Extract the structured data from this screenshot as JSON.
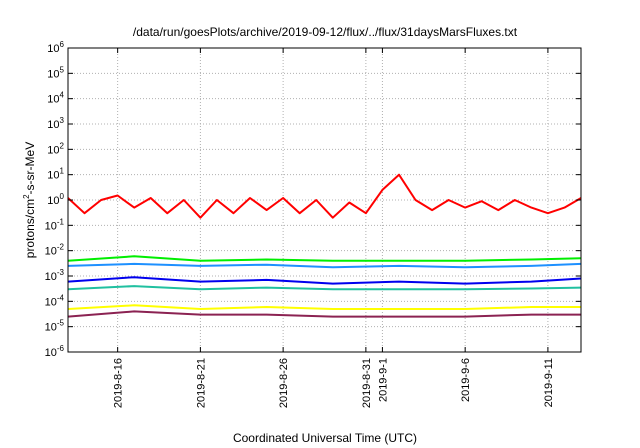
{
  "chart_data": {
    "type": "line",
    "title": "/data/run/goesPlots/archive/2019-09-12/flux/../flux/31daysMarsFluxes.txt",
    "xlabel": "Coordinated Universal Time (UTC)",
    "ylabel": "protons/cm2-s-sr-MeV",
    "ylabel_base": "protons/cm",
    "ylabel_sup": "2",
    "ylabel_rest": "-s-sr-MeV",
    "yscale": "log",
    "ylim": [
      1e-06,
      1000000.0
    ],
    "xlim": [
      "2019-08-13",
      "2019-09-13"
    ],
    "grid": true,
    "legend": "none",
    "y_ticks": [
      {
        "value": 1e-06,
        "exp": "-6"
      },
      {
        "value": 1e-05,
        "exp": "-5"
      },
      {
        "value": 0.0001,
        "exp": "-4"
      },
      {
        "value": 0.001,
        "exp": "-3"
      },
      {
        "value": 0.01,
        "exp": "-2"
      },
      {
        "value": 0.1,
        "exp": "-1"
      },
      {
        "value": 1.0,
        "exp": "0"
      },
      {
        "value": 10.0,
        "exp": "1"
      },
      {
        "value": 100.0,
        "exp": "2"
      },
      {
        "value": 1000.0,
        "exp": "3"
      },
      {
        "value": 10000.0,
        "exp": "4"
      },
      {
        "value": 100000.0,
        "exp": "5"
      },
      {
        "value": 1000000.0,
        "exp": "6"
      }
    ],
    "x_ticks": [
      {
        "date": "2019-08-16",
        "label": "2019-8-16"
      },
      {
        "date": "2019-08-21",
        "label": "2019-8-21"
      },
      {
        "date": "2019-08-26",
        "label": "2019-8-26"
      },
      {
        "date": "2019-08-31",
        "label": "2019-8-31"
      },
      {
        "date": "2019-09-01",
        "label": "2019-9-1"
      },
      {
        "date": "2019-09-06",
        "label": "2019-9-6"
      },
      {
        "date": "2019-09-11",
        "label": "2019-9-11"
      }
    ],
    "series": [
      {
        "color": "#ff0000",
        "x": [
          "2019-08-13",
          "2019-08-14",
          "2019-08-15",
          "2019-08-16",
          "2019-08-17",
          "2019-08-18",
          "2019-08-19",
          "2019-08-20",
          "2019-08-21",
          "2019-08-22",
          "2019-08-23",
          "2019-08-24",
          "2019-08-25",
          "2019-08-26",
          "2019-08-27",
          "2019-08-28",
          "2019-08-29",
          "2019-08-30",
          "2019-08-31",
          "2019-09-01",
          "2019-09-02",
          "2019-09-03",
          "2019-09-04",
          "2019-09-05",
          "2019-09-06",
          "2019-09-07",
          "2019-09-08",
          "2019-09-09",
          "2019-09-10",
          "2019-09-11",
          "2019-09-12",
          "2019-09-13"
        ],
        "y": [
          1.2,
          0.3,
          1.0,
          1.5,
          0.5,
          1.2,
          0.3,
          1.0,
          0.2,
          1.0,
          0.3,
          1.2,
          0.4,
          1.2,
          0.3,
          1.0,
          0.2,
          0.8,
          0.3,
          2.5,
          10,
          1.0,
          0.4,
          1.0,
          0.5,
          0.9,
          0.4,
          1.0,
          0.5,
          0.3,
          0.5,
          1.2
        ]
      },
      {
        "color": "#00ee00",
        "x": [
          "2019-08-13",
          "2019-08-17",
          "2019-08-21",
          "2019-08-25",
          "2019-08-29",
          "2019-09-02",
          "2019-09-06",
          "2019-09-10",
          "2019-09-13"
        ],
        "y": [
          0.004,
          0.006,
          0.004,
          0.0045,
          0.004,
          0.004,
          0.004,
          0.0045,
          0.005
        ]
      },
      {
        "color": "#1e90ff",
        "x": [
          "2019-08-13",
          "2019-08-17",
          "2019-08-21",
          "2019-08-25",
          "2019-08-29",
          "2019-09-02",
          "2019-09-06",
          "2019-09-10",
          "2019-09-13"
        ],
        "y": [
          0.0025,
          0.003,
          0.0025,
          0.0028,
          0.0022,
          0.0025,
          0.0022,
          0.0025,
          0.003
        ]
      },
      {
        "color": "#0000ee",
        "x": [
          "2019-08-13",
          "2019-08-17",
          "2019-08-21",
          "2019-08-25",
          "2019-08-29",
          "2019-09-02",
          "2019-09-06",
          "2019-09-10",
          "2019-09-13"
        ],
        "y": [
          0.0006,
          0.0009,
          0.0006,
          0.0007,
          0.0005,
          0.0006,
          0.0005,
          0.0006,
          0.0008
        ]
      },
      {
        "color": "#20c0a0",
        "x": [
          "2019-08-13",
          "2019-08-17",
          "2019-08-21",
          "2019-08-25",
          "2019-08-29",
          "2019-09-02",
          "2019-09-06",
          "2019-09-10",
          "2019-09-13"
        ],
        "y": [
          0.0003,
          0.0004,
          0.0003,
          0.00035,
          0.0003,
          0.0003,
          0.0003,
          0.00032,
          0.00035
        ]
      },
      {
        "color": "#ffff00",
        "x": [
          "2019-08-13",
          "2019-08-17",
          "2019-08-21",
          "2019-08-25",
          "2019-08-29",
          "2019-09-02",
          "2019-09-06",
          "2019-09-10",
          "2019-09-13"
        ],
        "y": [
          5e-05,
          7e-05,
          5e-05,
          6e-05,
          5e-05,
          5e-05,
          5e-05,
          6e-05,
          6e-05
        ]
      },
      {
        "color": "#8b2252",
        "x": [
          "2019-08-13",
          "2019-08-17",
          "2019-08-21",
          "2019-08-25",
          "2019-08-29",
          "2019-09-02",
          "2019-09-06",
          "2019-09-10",
          "2019-09-13"
        ],
        "y": [
          2.5e-05,
          4e-05,
          3e-05,
          3e-05,
          2.5e-05,
          2.5e-05,
          2.5e-05,
          3e-05,
          3e-05
        ]
      }
    ]
  }
}
